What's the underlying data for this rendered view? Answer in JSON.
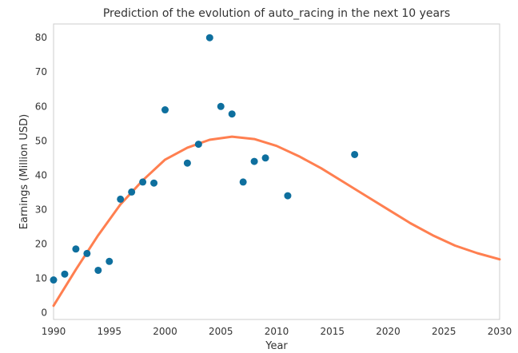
{
  "chart_data": {
    "type": "scatter",
    "title": "Prediction of the evolution of auto_racing in the next 10 years",
    "xlabel": "Year",
    "ylabel": "Earnings (Million USD)",
    "xlim": [
      1990,
      2030
    ],
    "ylim": [
      -2,
      84
    ],
    "xticks": [
      1990,
      1995,
      2000,
      2005,
      2010,
      2015,
      2020,
      2025,
      2030
    ],
    "yticks": [
      0,
      10,
      20,
      30,
      40,
      50,
      60,
      70,
      80
    ],
    "grid": false,
    "series": [
      {
        "kind": "scatter",
        "color": "#0e6f9e",
        "points": [
          [
            1990,
            9.5
          ],
          [
            1991,
            11.2
          ],
          [
            1992,
            18.5
          ],
          [
            1993,
            17.2
          ],
          [
            1994,
            12.3
          ],
          [
            1995,
            14.9
          ],
          [
            1996,
            33.0
          ],
          [
            1997,
            35.1
          ],
          [
            1998,
            38.0
          ],
          [
            1999,
            37.7
          ],
          [
            2000,
            59.0
          ],
          [
            2002,
            43.5
          ],
          [
            2003,
            49.0
          ],
          [
            2004,
            80.0
          ],
          [
            2005,
            60.0
          ],
          [
            2006,
            57.8
          ],
          [
            2007,
            38.0
          ],
          [
            2008,
            44.0
          ],
          [
            2009,
            45.0
          ],
          [
            2011,
            34.0
          ],
          [
            2017,
            46.0
          ]
        ]
      },
      {
        "kind": "line",
        "color": "#ff7f50",
        "points": [
          [
            1990,
            2.0
          ],
          [
            1992,
            12.5
          ],
          [
            1994,
            22.5
          ],
          [
            1996,
            31.5
          ],
          [
            1998,
            38.5
          ],
          [
            2000,
            44.5
          ],
          [
            2002,
            48.0
          ],
          [
            2004,
            50.3
          ],
          [
            2006,
            51.2
          ],
          [
            2008,
            50.5
          ],
          [
            2010,
            48.5
          ],
          [
            2012,
            45.5
          ],
          [
            2014,
            42.0
          ],
          [
            2016,
            38.0
          ],
          [
            2018,
            34.0
          ],
          [
            2020,
            30.0
          ],
          [
            2022,
            26.0
          ],
          [
            2024,
            22.5
          ],
          [
            2026,
            19.5
          ],
          [
            2028,
            17.3
          ],
          [
            2030,
            15.5
          ]
        ]
      }
    ]
  }
}
